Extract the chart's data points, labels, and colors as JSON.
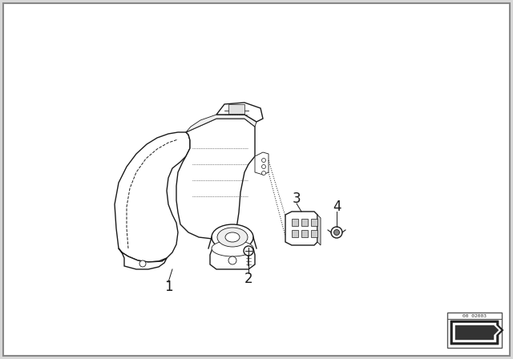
{
  "bg_color": "#ffffff",
  "line_color": "#1a1a1a",
  "dashed_color": "#333333",
  "border_color": "#aaaaaa",
  "figure_bg": "#d8d8d8",
  "logo_text": "00 02003",
  "label1": "1",
  "label2": "2",
  "label3": "3",
  "label4": "4",
  "lw_main": 1.0,
  "lw_thin": 0.6,
  "lw_border": 1.2
}
